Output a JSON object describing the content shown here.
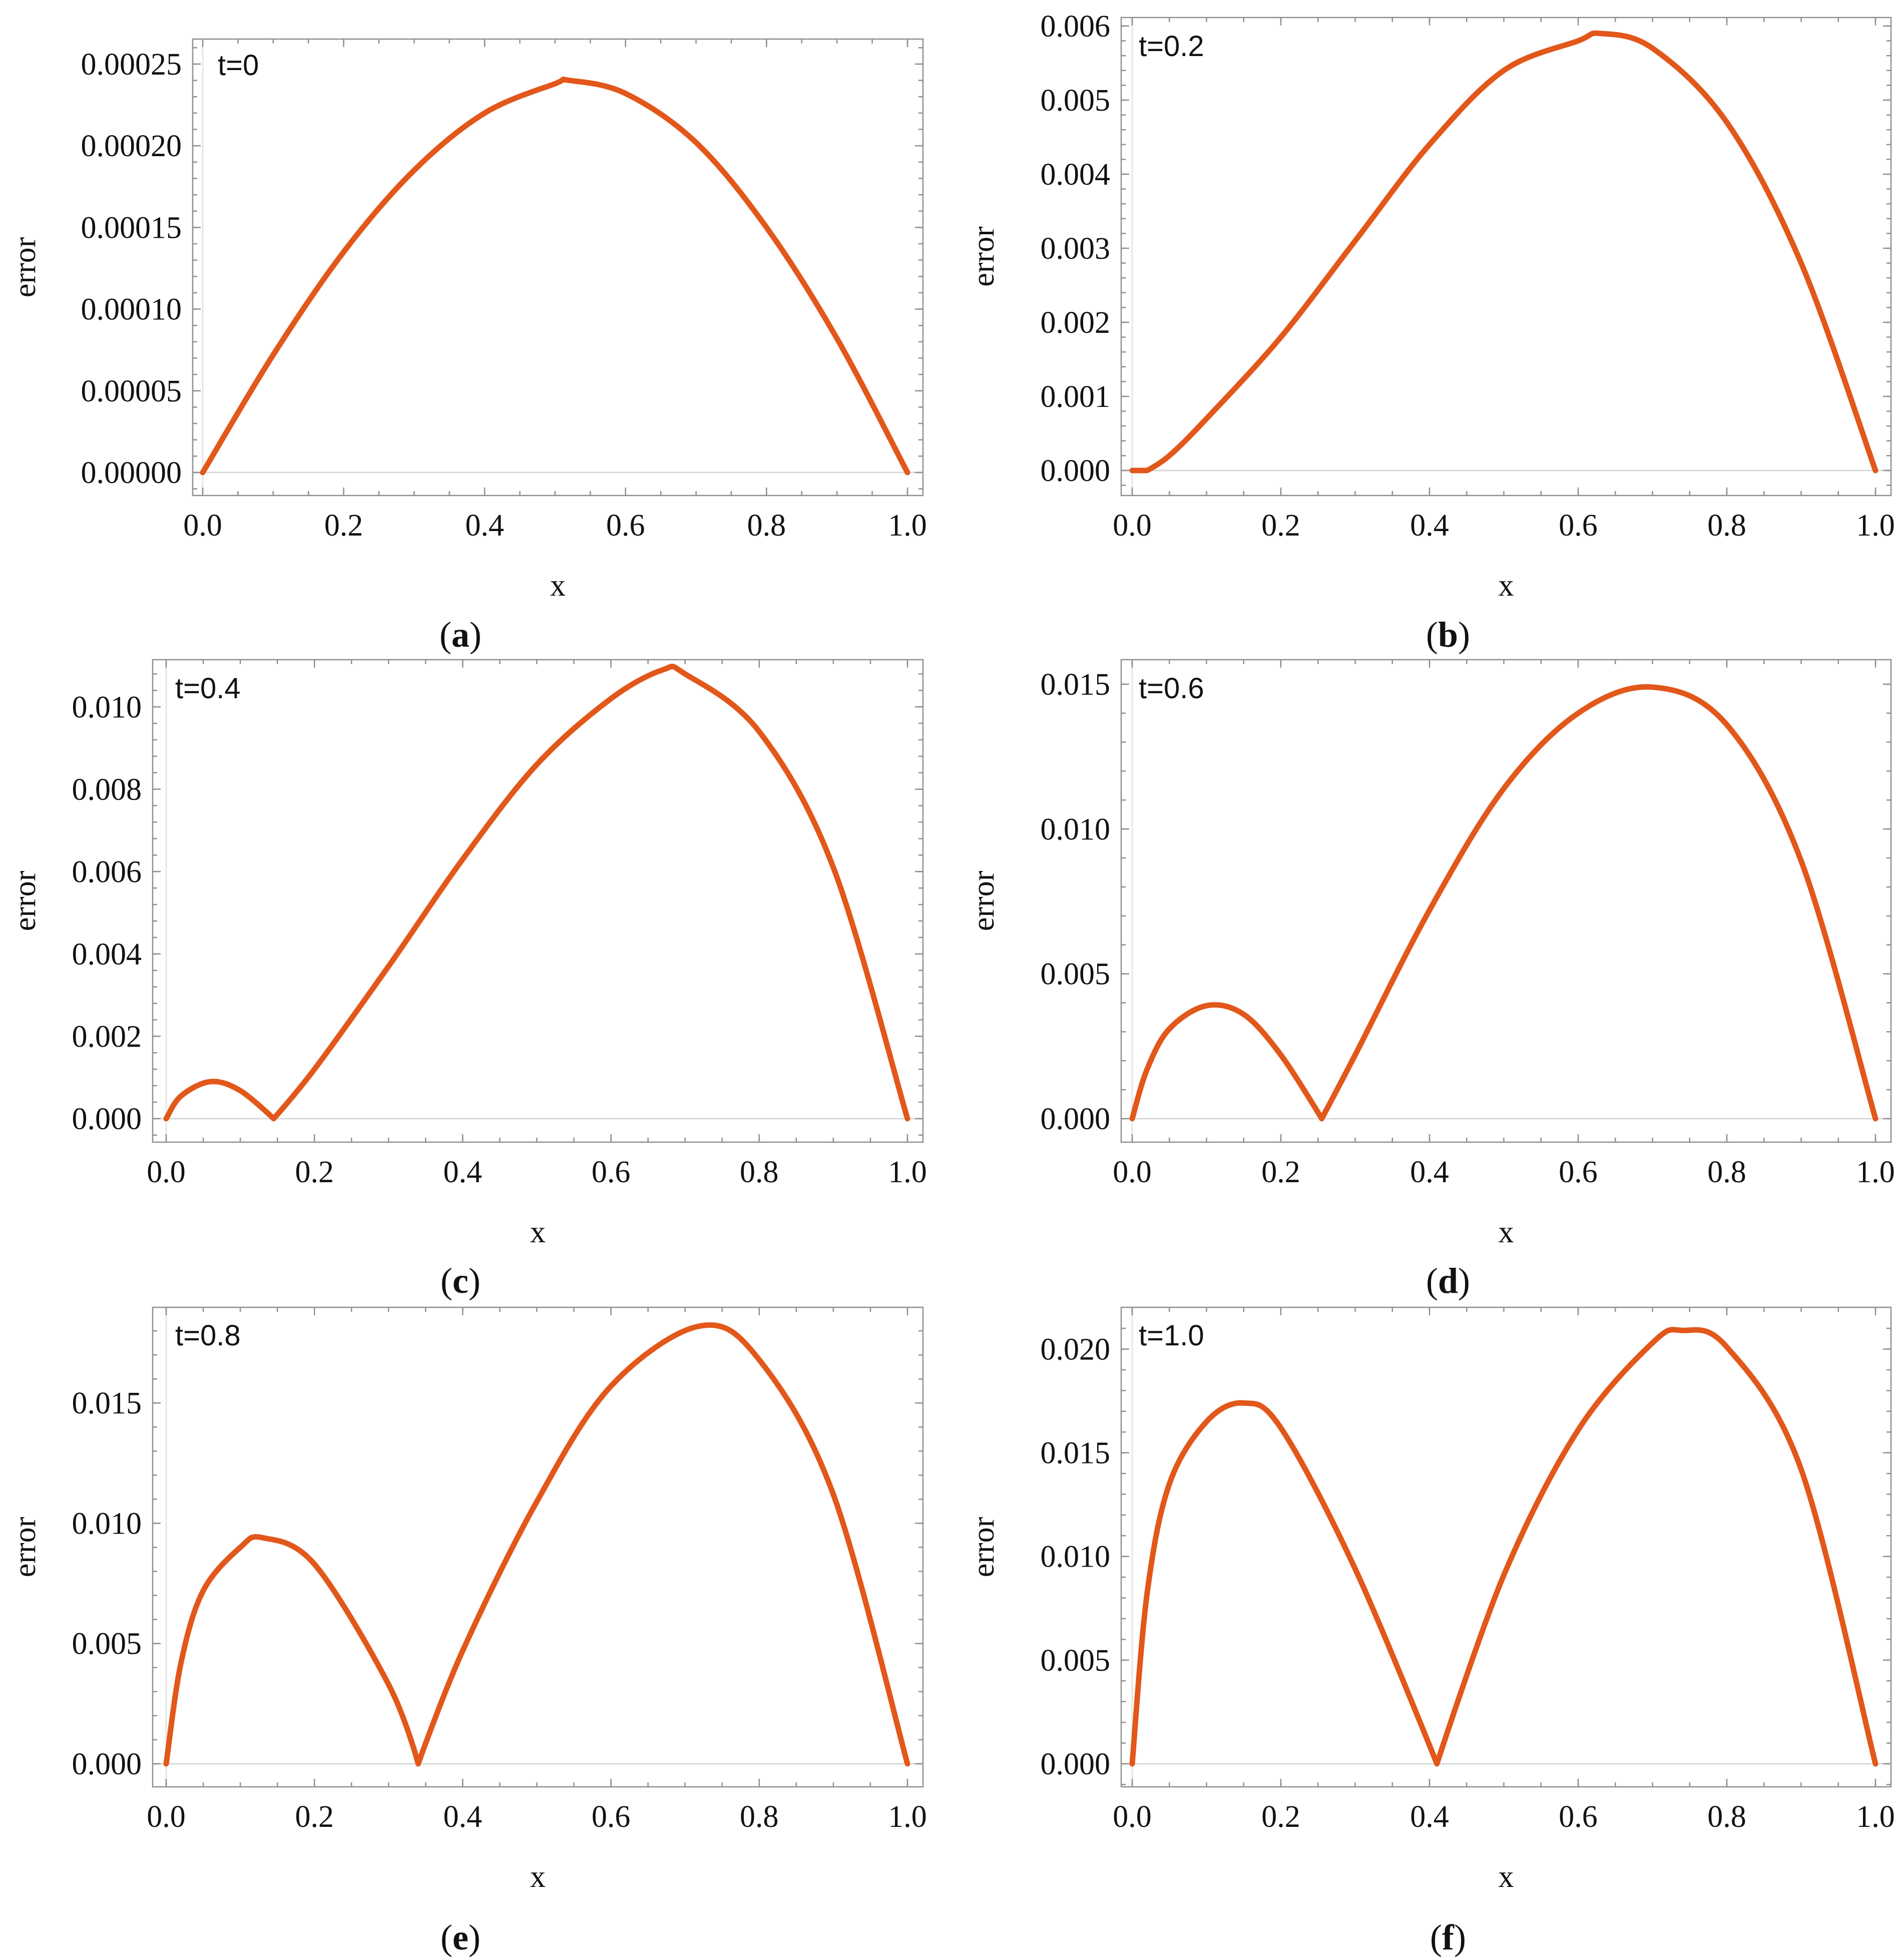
{
  "colors": {
    "curve": "#e2571a",
    "frame": "#8f8f8f",
    "text": "#111111"
  },
  "chart_data": [
    {
      "type": "line",
      "panel": "a",
      "annotation": "t=0",
      "xlabel": "x",
      "ylabel": "error",
      "xlim": [
        0,
        1
      ],
      "ylim": [
        0,
        0.00025
      ],
      "xticks": [
        "0.0",
        "0.2",
        "0.4",
        "0.6",
        "0.8",
        "1.0"
      ],
      "yticks": [
        "0.00000",
        "0.00005",
        "0.00010",
        "0.00015",
        "0.00020",
        "0.00025"
      ],
      "series": [
        {
          "x": [
            0,
            0.1,
            0.2,
            0.3,
            0.4,
            0.5,
            0.52,
            0.6,
            0.7,
            0.8,
            0.9,
            1.0
          ],
          "y": [
            0,
            7.2e-05,
            0.000135,
            0.000185,
            0.00022,
            0.000238,
            0.00024,
            0.000232,
            0.000202,
            0.00015,
            8.2e-05,
            0
          ]
        }
      ]
    },
    {
      "type": "line",
      "panel": "b",
      "annotation": "t=0.2",
      "xlabel": "x",
      "ylabel": "error",
      "xlim": [
        0,
        1
      ],
      "ylim": [
        0,
        0.006
      ],
      "xticks": [
        "0.0",
        "0.2",
        "0.4",
        "0.6",
        "0.8",
        "1.0"
      ],
      "yticks": [
        "0.000",
        "0.001",
        "0.002",
        "0.003",
        "0.004",
        "0.005",
        "0.006"
      ],
      "series": [
        {
          "x": [
            0,
            0.02,
            0.05,
            0.1,
            0.2,
            0.3,
            0.4,
            0.5,
            0.6,
            0.63,
            0.7,
            0.8,
            0.9,
            1.0
          ],
          "y": [
            0,
            0,
            0.0002,
            0.0007,
            0.0018,
            0.0031,
            0.0044,
            0.0054,
            0.0058,
            0.0059,
            0.0057,
            0.0047,
            0.0028,
            0
          ]
        }
      ]
    },
    {
      "type": "line",
      "panel": "c",
      "annotation": "t=0.4",
      "xlabel": "x",
      "ylabel": "error",
      "xlim": [
        0,
        1
      ],
      "ylim": [
        0,
        0.011
      ],
      "xticks": [
        "0.0",
        "0.2",
        "0.4",
        "0.6",
        "0.8",
        "1.0"
      ],
      "yticks": [
        "0.000",
        "0.002",
        "0.004",
        "0.006",
        "0.008",
        "0.010"
      ],
      "series": [
        {
          "x": [
            0,
            0.02,
            0.06,
            0.1,
            0.145,
            0.2,
            0.3,
            0.4,
            0.5,
            0.6,
            0.67,
            0.7,
            0.8,
            0.9,
            1.0
          ],
          "y": [
            0,
            0.00055,
            0.0009,
            0.00068,
            0,
            0.0012,
            0.0037,
            0.0063,
            0.0086,
            0.0102,
            0.0109,
            0.0108,
            0.0094,
            0.0061,
            0
          ]
        }
      ]
    },
    {
      "type": "line",
      "panel": "d",
      "annotation": "t=0.6",
      "xlabel": "x",
      "ylabel": "error",
      "xlim": [
        0,
        1
      ],
      "ylim": [
        0,
        0.015
      ],
      "xticks": [
        "0.0",
        "0.2",
        "0.4",
        "0.6",
        "0.8",
        "1.0"
      ],
      "yticks": [
        "0.000",
        "0.005",
        "0.010",
        "0.015"
      ],
      "series": [
        {
          "x": [
            0,
            0.02,
            0.05,
            0.1,
            0.15,
            0.2,
            0.255,
            0.3,
            0.4,
            0.5,
            0.6,
            0.7,
            0.8,
            0.9,
            1.0
          ],
          "y": [
            0,
            0.0017,
            0.0031,
            0.0039,
            0.0036,
            0.0022,
            0,
            0.0022,
            0.0072,
            0.0114,
            0.014,
            0.0149,
            0.0136,
            0.0089,
            0
          ]
        }
      ]
    },
    {
      "type": "line",
      "panel": "e",
      "annotation": "t=0.8",
      "xlabel": "x",
      "ylabel": "error",
      "xlim": [
        0,
        1
      ],
      "ylim": [
        0,
        0.018
      ],
      "xticks": [
        "0.0",
        "0.2",
        "0.4",
        "0.6",
        "0.8",
        "1.0"
      ],
      "yticks": [
        "0.000",
        "0.005",
        "0.010",
        "0.015"
      ],
      "series": [
        {
          "x": [
            0,
            0.02,
            0.05,
            0.1,
            0.13,
            0.2,
            0.3,
            0.34,
            0.4,
            0.5,
            0.6,
            0.72,
            0.8,
            0.9,
            1.0
          ],
          "y": [
            0,
            0.0042,
            0.0072,
            0.009,
            0.0094,
            0.0083,
            0.0033,
            0,
            0.0047,
            0.0109,
            0.0157,
            0.0182,
            0.0168,
            0.0112,
            0
          ]
        }
      ]
    },
    {
      "type": "line",
      "panel": "f",
      "annotation": "t=1.0",
      "xlabel": "x",
      "ylabel": "error",
      "xlim": [
        0,
        1
      ],
      "ylim": [
        0,
        0.021
      ],
      "xticks": [
        "0.0",
        "0.2",
        "0.4",
        "0.6",
        "0.8",
        "1.0"
      ],
      "yticks": [
        "0.000",
        "0.005",
        "0.010",
        "0.015",
        "0.020"
      ],
      "series": [
        {
          "x": [
            0,
            0.02,
            0.05,
            0.1,
            0.15,
            0.2,
            0.3,
            0.41,
            0.5,
            0.6,
            0.7,
            0.74,
            0.8,
            0.9,
            1.0
          ],
          "y": [
            0,
            0.0082,
            0.0135,
            0.0165,
            0.0174,
            0.0162,
            0.0094,
            0,
            0.0091,
            0.0161,
            0.0203,
            0.0209,
            0.0201,
            0.0142,
            0
          ]
        }
      ]
    }
  ]
}
